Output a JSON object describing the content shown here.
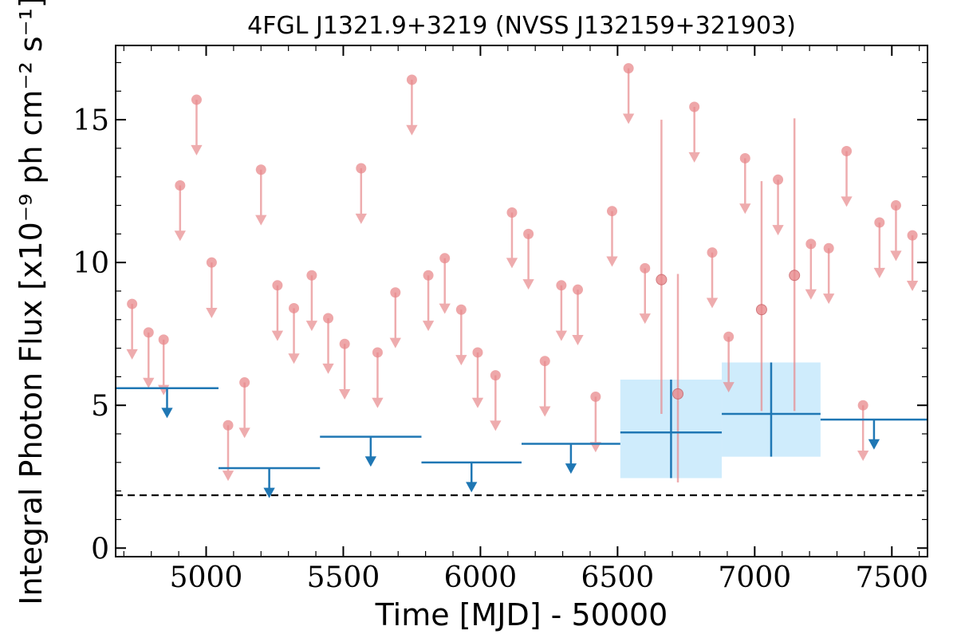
{
  "chart_data": {
    "type": "scatter",
    "title": "4FGL J1321.9+3219 (NVSS J132159+321903)",
    "xlabel": "Time [MJD] - 50000",
    "ylabel": "Integral Photon Flux [x10⁻⁹ ph cm⁻² s⁻¹]",
    "xlim": [
      4670,
      7630
    ],
    "ylim": [
      -0.3,
      17.6
    ],
    "xticks": [
      5000,
      5500,
      6000,
      6500,
      7000,
      7500
    ],
    "yticks": [
      0,
      5,
      10,
      15
    ],
    "grid": false,
    "colors": {
      "short_bins": "#e8898c",
      "long_bins": "#1f77b4",
      "band_fill": "#bfe6fb",
      "baseline": "#000000"
    },
    "baseline_flux": 1.85,
    "short_bin_upper_limits": [
      {
        "x": 4730,
        "y": 8.55
      },
      {
        "x": 4790,
        "y": 7.55
      },
      {
        "x": 4845,
        "y": 7.3
      },
      {
        "x": 4905,
        "y": 12.7
      },
      {
        "x": 4965,
        "y": 15.7
      },
      {
        "x": 5020,
        "y": 10.0
      },
      {
        "x": 5080,
        "y": 4.3
      },
      {
        "x": 5140,
        "y": 5.8
      },
      {
        "x": 5200,
        "y": 13.25
      },
      {
        "x": 5260,
        "y": 9.2
      },
      {
        "x": 5320,
        "y": 8.4
      },
      {
        "x": 5385,
        "y": 9.55
      },
      {
        "x": 5445,
        "y": 8.05
      },
      {
        "x": 5505,
        "y": 7.15
      },
      {
        "x": 5565,
        "y": 13.3
      },
      {
        "x": 5625,
        "y": 6.85
      },
      {
        "x": 5690,
        "y": 8.95
      },
      {
        "x": 5750,
        "y": 16.4
      },
      {
        "x": 5810,
        "y": 9.55
      },
      {
        "x": 5870,
        "y": 10.15
      },
      {
        "x": 5930,
        "y": 8.35
      },
      {
        "x": 5990,
        "y": 6.85
      },
      {
        "x": 6055,
        "y": 6.05
      },
      {
        "x": 6115,
        "y": 11.75
      },
      {
        "x": 6175,
        "y": 11.0
      },
      {
        "x": 6235,
        "y": 6.55
      },
      {
        "x": 6295,
        "y": 9.2
      },
      {
        "x": 6355,
        "y": 9.05
      },
      {
        "x": 6420,
        "y": 5.3
      },
      {
        "x": 6480,
        "y": 11.8
      },
      {
        "x": 6540,
        "y": 16.8
      },
      {
        "x": 6600,
        "y": 9.8
      },
      {
        "x": 6845,
        "y": 10.35
      },
      {
        "x": 6905,
        "y": 7.4
      },
      {
        "x": 6965,
        "y": 13.65
      },
      {
        "x": 7085,
        "y": 12.9
      },
      {
        "x": 7205,
        "y": 10.65
      },
      {
        "x": 7270,
        "y": 10.5
      },
      {
        "x": 7335,
        "y": 13.9
      },
      {
        "x": 7395,
        "y": 5.0
      },
      {
        "x": 7455,
        "y": 11.4
      },
      {
        "x": 7515,
        "y": 12.0
      },
      {
        "x": 7575,
        "y": 10.95
      }
    ],
    "short_bin_detections": [
      {
        "x": 6660,
        "y": 9.4,
        "ylow": 4.7,
        "yhigh": 15.0
      },
      {
        "x": 6720,
        "y": 5.4,
        "ylow": 2.3,
        "yhigh": 9.6
      },
      {
        "x": 7025,
        "y": 8.35,
        "ylow": 4.8,
        "yhigh": 12.85
      },
      {
        "x": 7145,
        "y": 9.55,
        "ylow": 4.8,
        "yhigh": 15.05
      },
      {
        "x": 6780,
        "y": 15.45,
        "upper_limit": true
      }
    ],
    "long_bin_upper_limits": [
      {
        "xmin": 4670,
        "xmax": 5045,
        "y": 5.6
      },
      {
        "xmin": 5045,
        "xmax": 5415,
        "y": 2.8
      },
      {
        "xmin": 5415,
        "xmax": 5785,
        "y": 3.9
      },
      {
        "xmin": 5785,
        "xmax": 6150,
        "y": 3.0
      },
      {
        "xmin": 6150,
        "xmax": 6510,
        "y": 3.65
      },
      {
        "xmin": 7240,
        "xmax": 7630,
        "y": 4.5
      }
    ],
    "long_bin_detections": [
      {
        "xmin": 6510,
        "xmax": 6880,
        "y": 4.05,
        "ylow": 2.45,
        "yhigh": 5.9
      },
      {
        "xmin": 6880,
        "xmax": 7240,
        "y": 4.7,
        "ylow": 3.2,
        "yhigh": 6.5
      }
    ]
  }
}
